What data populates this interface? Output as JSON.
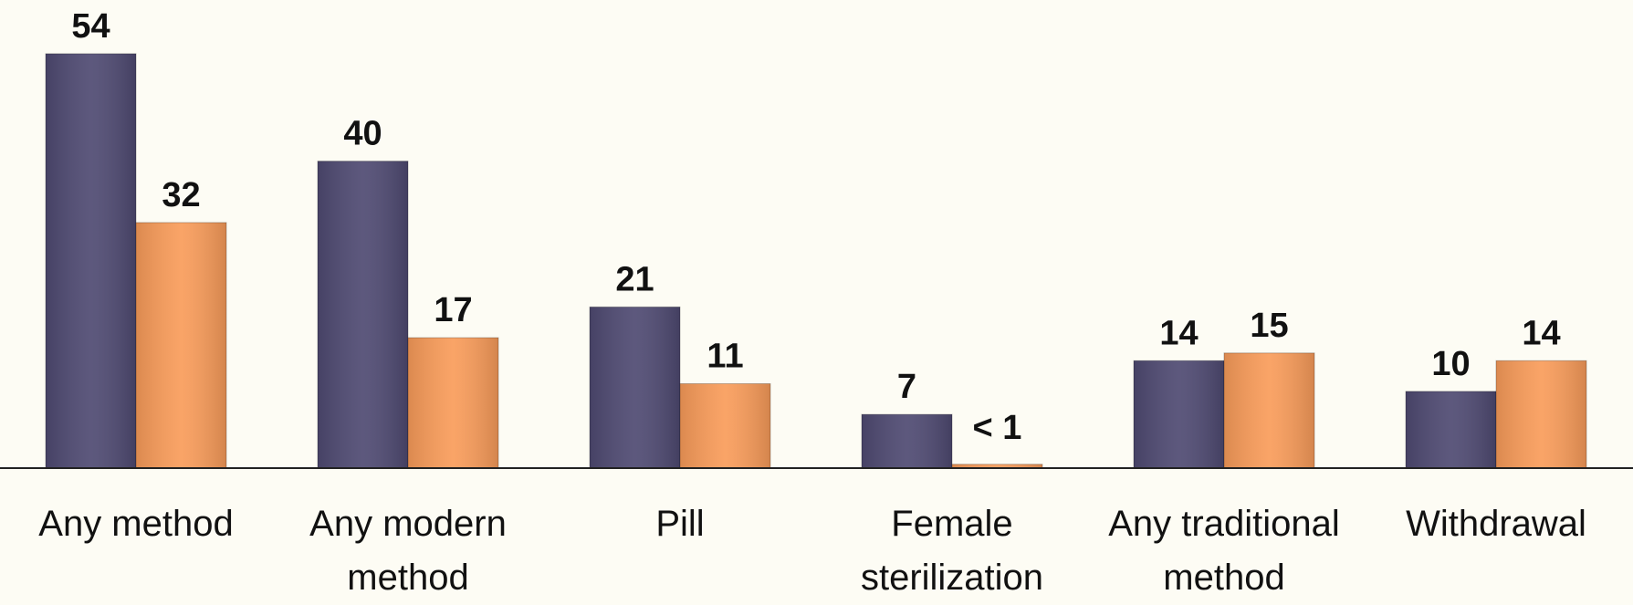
{
  "chart_data": {
    "type": "bar",
    "categories": [
      "Any method",
      "Any modern method",
      "Pill",
      "Female sterilization",
      "Any traditional method",
      "Withdrawal"
    ],
    "series": [
      {
        "color": "#4f4a72",
        "values": [
          54,
          40,
          21,
          7,
          14,
          10
        ]
      },
      {
        "color": "#f99c5a",
        "values": [
          32,
          17,
          11,
          0.5,
          15,
          14
        ],
        "value_labels": [
          "32",
          "17",
          "11",
          "< 1",
          "15",
          "14"
        ]
      }
    ],
    "ylim": [
      0,
      61
    ]
  }
}
